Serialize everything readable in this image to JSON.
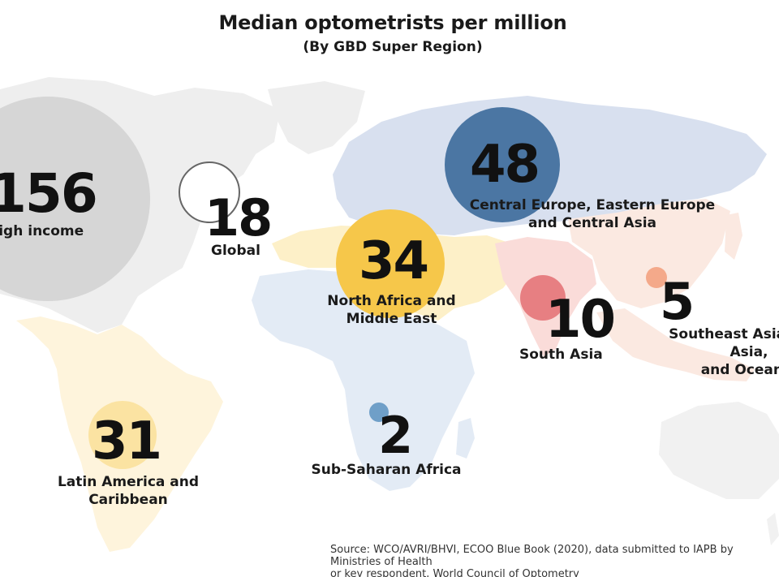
{
  "title": "Median optometrists per million",
  "subtitle": "(By GBD Super Region)",
  "source": "Source: WCO/AVRI/BHVI, ECOO Blue Book (2020), data submitted to IAPB by Ministries of Health\nor key respondent, World Council of Optometry",
  "colors": {
    "high_income": "#d6d6d6",
    "global": "#ffffff",
    "cee_ca": "#4b76a3",
    "nafme": "#f6c74a",
    "south_asia": "#e36f72",
    "sea_oceania": "#f4a98a",
    "latam": "#fbe3a2",
    "ssa": "#6f9fc8",
    "map_north_america": "#eeeeee",
    "map_europe_asia_north": "#d8e0ef",
    "map_africa": "#e3ebf5",
    "map_middle_east": "#fdf0c8",
    "map_south_asia": "#fadcd9",
    "map_east_asia": "#fbe9e1",
    "map_latin_america": "#fef4dc",
    "map_australia": "#f1f1f1"
  },
  "chart_data": {
    "type": "bubble-map",
    "title": "Median optometrists per million",
    "subtitle": "(By GBD Super Region)",
    "unit": "optometrists per million",
    "regions": [
      {
        "key": "high_income",
        "name": "High income",
        "value": 156
      },
      {
        "key": "global",
        "name": "Global",
        "value": 18
      },
      {
        "key": "cee_ca",
        "name": "Central Europe, Eastern Europe\nand Central Asia",
        "value": 48
      },
      {
        "key": "nafme",
        "name": "North Africa and\nMiddle East",
        "value": 34
      },
      {
        "key": "south_asia",
        "name": "South Asia",
        "value": 10
      },
      {
        "key": "sea_oceania",
        "name": "Southeast Asia, East Asia,\nand Oceania",
        "value": 5
      },
      {
        "key": "latam",
        "name": "Latin America and\nCaribbean",
        "value": 31
      },
      {
        "key": "ssa",
        "name": "Sub-Saharan Africa",
        "value": 2
      }
    ]
  }
}
